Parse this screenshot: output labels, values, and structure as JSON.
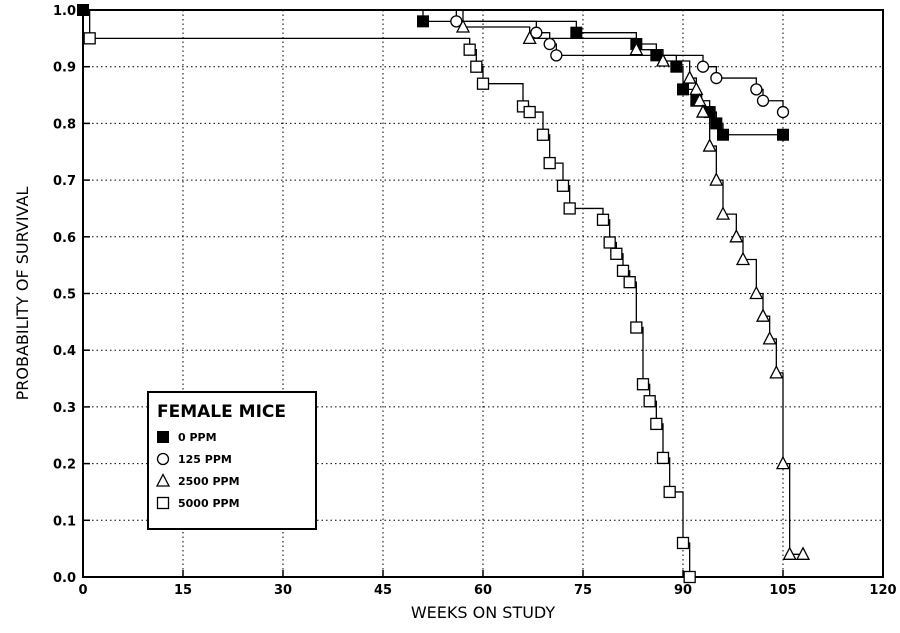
{
  "chart_data": {
    "type": "line",
    "xlabel": "WEEKS ON STUDY",
    "ylabel": "PROBABILITY OF SURVIVAL",
    "xlim": [
      0,
      120
    ],
    "ylim": [
      0.0,
      1.0
    ],
    "x_ticks": [
      0,
      15,
      30,
      45,
      60,
      75,
      90,
      105,
      120
    ],
    "y_ticks": [
      0.0,
      0.1,
      0.2,
      0.3,
      0.4,
      0.5,
      0.6,
      0.7,
      0.8,
      0.9,
      1.0
    ],
    "grid": true,
    "legend": {
      "title": "FEMALE MICE",
      "placement": "lower-left",
      "entries": [
        {
          "label": "0 PPM",
          "marker": "filled-square"
        },
        {
          "label": "125 PPM",
          "marker": "open-circle"
        },
        {
          "label": "2500 PPM",
          "marker": "open-triangle"
        },
        {
          "label": "5000 PPM",
          "marker": "open-square"
        }
      ]
    },
    "series": [
      {
        "name": "0 PPM",
        "marker": "filled-square",
        "start": [
          0,
          1.0
        ],
        "points": [
          [
            0,
            1.0
          ],
          [
            51,
            0.98
          ],
          [
            74,
            0.96
          ],
          [
            83,
            0.94
          ],
          [
            86,
            0.92
          ],
          [
            89,
            0.9
          ],
          [
            90,
            0.86
          ],
          [
            92,
            0.84
          ],
          [
            94,
            0.82
          ],
          [
            95,
            0.8
          ],
          [
            96,
            0.78
          ],
          [
            105,
            0.78
          ]
        ]
      },
      {
        "name": "125 PPM",
        "marker": "open-circle",
        "start": [
          0,
          1.0
        ],
        "points": [
          [
            56,
            0.98
          ],
          [
            68,
            0.96
          ],
          [
            70,
            0.94
          ],
          [
            71,
            0.92
          ],
          [
            93,
            0.9
          ],
          [
            95,
            0.88
          ],
          [
            101,
            0.86
          ],
          [
            102,
            0.84
          ],
          [
            105,
            0.82
          ]
        ]
      },
      {
        "name": "2500 PPM",
        "marker": "open-triangle",
        "start": [
          0,
          1.0
        ],
        "points": [
          [
            57,
            0.97
          ],
          [
            67,
            0.95
          ],
          [
            83,
            0.93
          ],
          [
            87,
            0.91
          ],
          [
            91,
            0.88
          ],
          [
            92,
            0.86
          ],
          [
            92.5,
            0.84
          ],
          [
            93,
            0.82
          ],
          [
            94,
            0.76
          ],
          [
            95,
            0.7
          ],
          [
            96,
            0.64
          ],
          [
            98,
            0.6
          ],
          [
            99,
            0.56
          ],
          [
            101,
            0.5
          ],
          [
            102,
            0.46
          ],
          [
            103,
            0.42
          ],
          [
            104,
            0.36
          ],
          [
            105,
            0.2
          ],
          [
            106,
            0.04
          ],
          [
            108,
            0.04
          ]
        ]
      },
      {
        "name": "5000 PPM",
        "marker": "open-square",
        "start": [
          0,
          1.0
        ],
        "points": [
          [
            1,
            0.95
          ],
          [
            58,
            0.93
          ],
          [
            59,
            0.9
          ],
          [
            60,
            0.87
          ],
          [
            66,
            0.83
          ],
          [
            67,
            0.82
          ],
          [
            69,
            0.78
          ],
          [
            70,
            0.73
          ],
          [
            72,
            0.69
          ],
          [
            73,
            0.65
          ],
          [
            78,
            0.63
          ],
          [
            79,
            0.59
          ],
          [
            80,
            0.57
          ],
          [
            81,
            0.54
          ],
          [
            82,
            0.52
          ],
          [
            83,
            0.44
          ],
          [
            84,
            0.34
          ],
          [
            85,
            0.31
          ],
          [
            86,
            0.27
          ],
          [
            87,
            0.21
          ],
          [
            88,
            0.15
          ],
          [
            90,
            0.06
          ],
          [
            91,
            0.0
          ]
        ]
      }
    ]
  }
}
